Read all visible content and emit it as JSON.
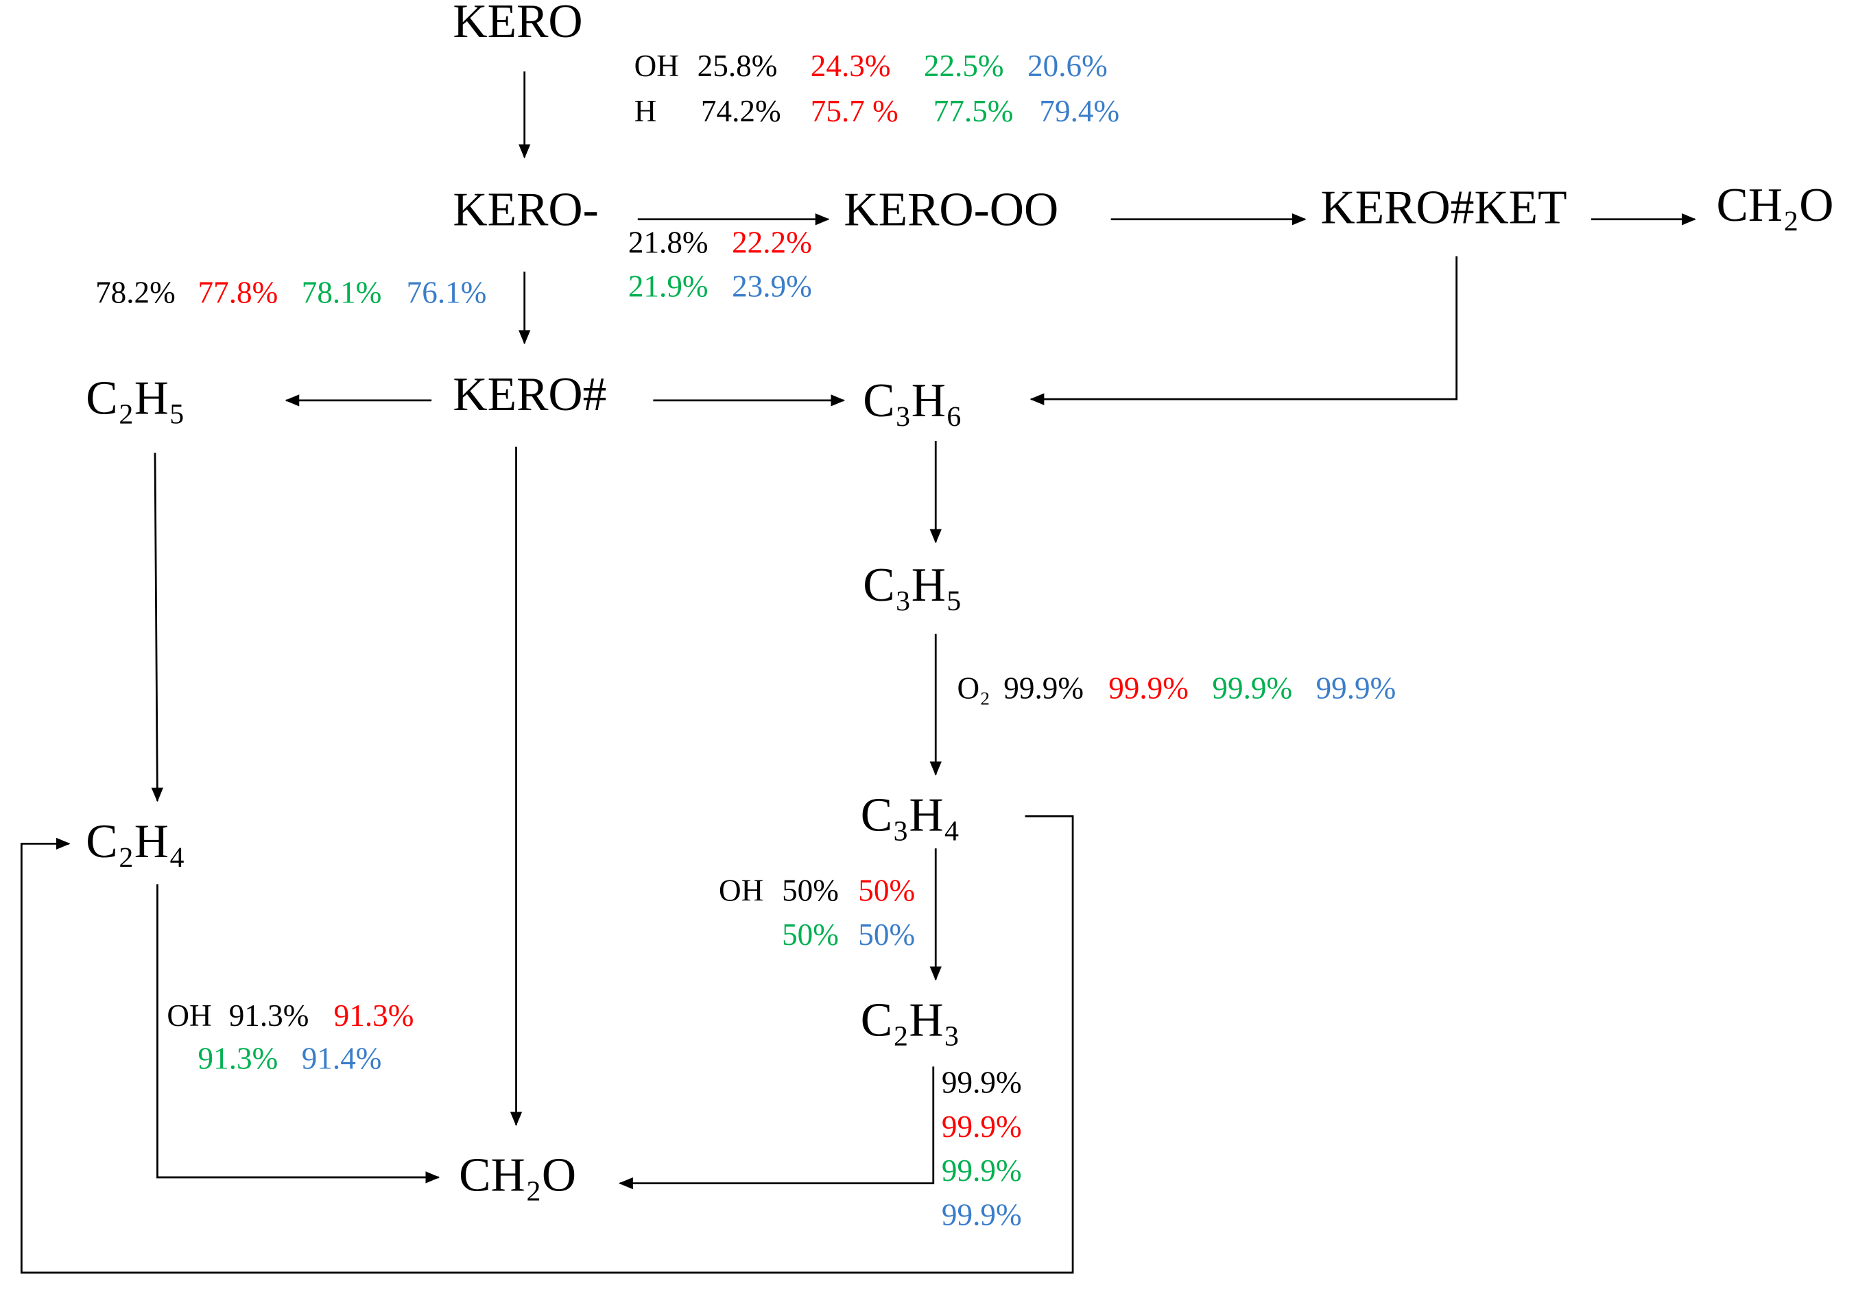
{
  "nodes": [
    "KERO",
    "KERO-",
    "KERO-OO",
    "KERO#KET",
    "CH₂O",
    "KERO#",
    "C₂H₅",
    "C₃H₆",
    "C₃H₅",
    "C₂H₄",
    "C₃H₄",
    "C₂H₃",
    "CH₂O"
  ],
  "edge_labels": [
    {
      "species": "OH",
      "values": [
        "25.8%",
        "24.3%",
        "22.5%",
        "20.6%"
      ]
    },
    {
      "species": "H",
      "values": [
        "74.2%",
        "75.7 %",
        "77.5%",
        "79.4%"
      ]
    },
    {
      "values": [
        "21.8%",
        "22.2%",
        "21.9%",
        "23.9%"
      ]
    },
    {
      "values": [
        "78.2%",
        "77.8%",
        "78.1%",
        "76.1%"
      ]
    },
    {
      "species": "O₂",
      "values": [
        "99.9%",
        "99.9%",
        "99.9%",
        "99.9%"
      ]
    },
    {
      "species": "OH",
      "values": [
        "50%",
        "50%",
        "50%",
        "50%"
      ]
    },
    {
      "species": "OH",
      "values": [
        "91.3%",
        "91.3%",
        "91.3%",
        "91.4%"
      ]
    },
    {
      "values": [
        "99.9%",
        "99.9%",
        "99.9%",
        "99.9%"
      ]
    }
  ]
}
